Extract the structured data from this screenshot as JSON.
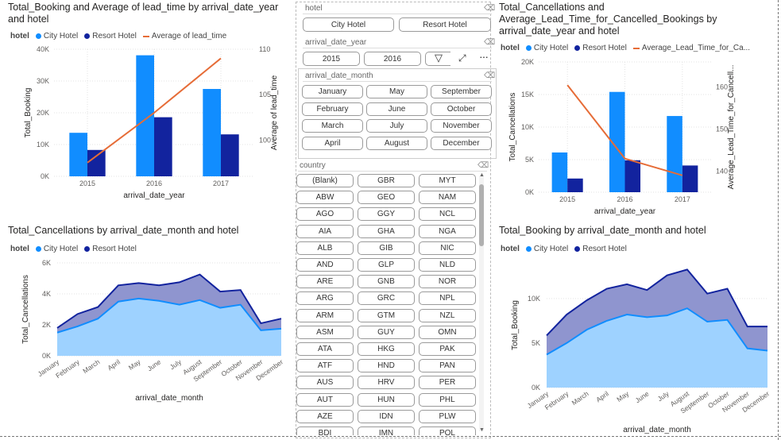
{
  "colors": {
    "city": "#118DFF",
    "resort": "#12239E",
    "line": "#E66C37",
    "grid": "#ddd"
  },
  "chart1": {
    "title": "Total_Booking and Average of lead_time by arrival_date_year\nand hotel",
    "legend_label": "hotel",
    "legend": [
      "City Hotel",
      "Resort Hotel",
      "Average of lead_time"
    ],
    "y_ticks": [
      "40K",
      "30K",
      "20K",
      "10K",
      "0K"
    ],
    "y2_ticks": [
      "110",
      "105",
      "100"
    ],
    "ylabel": "Total_Booking",
    "y2label": "Average of lead_time",
    "xlabel": "arrival_date_year",
    "chart_data": {
      "type": "bar",
      "categories": [
        "2015",
        "2016",
        "2017"
      ],
      "series": [
        {
          "name": "City Hotel",
          "values": [
            13700,
            38100,
            27500
          ]
        },
        {
          "name": "Resort Hotel",
          "values": [
            8300,
            18600,
            13200
          ]
        }
      ],
      "line": {
        "name": "Average of lead_time",
        "values": [
          97.5,
          103,
          109
        ]
      },
      "ylim": [
        0,
        40000
      ],
      "y2lim": [
        96,
        110
      ]
    }
  },
  "chart2": {
    "title": "Total_Cancellations and\nAverage_Lead_Time_for_Cancelled_Bookings by\narrival_date_year and hotel",
    "legend_label": "hotel",
    "legend": [
      "City Hotel",
      "Resort Hotel",
      "Average_Lead_Time_for_Ca..."
    ],
    "y_ticks": [
      "20K",
      "15K",
      "10K",
      "5K",
      "0K"
    ],
    "y2_ticks": [
      "160",
      "150",
      "140"
    ],
    "ylabel": "Total_Cancellations",
    "y2label": "Average_Lead_Time_for_Cancell...",
    "xlabel": "arrival_date_year",
    "chart_data": {
      "type": "bar",
      "categories": [
        "2015",
        "2016",
        "2017"
      ],
      "series": [
        {
          "name": "City Hotel",
          "values": [
            6100,
            15400,
            11700
          ]
        },
        {
          "name": "Resort Hotel",
          "values": [
            2100,
            4900,
            4100
          ]
        }
      ],
      "line": {
        "name": "Average_Lead_Time_for_Ca...",
        "values": [
          160.5,
          143,
          139
        ]
      },
      "ylim": [
        0,
        20000
      ],
      "y2lim": [
        135,
        166
      ]
    }
  },
  "chart3": {
    "title": "Total_Cancellations by arrival_date_month and hotel",
    "legend_label": "hotel",
    "legend": [
      "City Hotel",
      "Resort Hotel"
    ],
    "y_ticks": [
      "6K",
      "4K",
      "2K",
      "0K"
    ],
    "ylabel": "Total_Cancellations",
    "xlabel": "arrival_date_month",
    "chart_data": {
      "type": "area",
      "categories": [
        "January",
        "February",
        "March",
        "April",
        "May",
        "June",
        "July",
        "August",
        "September",
        "October",
        "November",
        "December"
      ],
      "series": [
        {
          "name": "City Hotel",
          "values": [
            1500,
            1900,
            2400,
            3500,
            3700,
            3550,
            3300,
            3600,
            3100,
            3300,
            1650,
            1750
          ]
        },
        {
          "name": "Resort Hotel",
          "values": [
            300,
            800,
            750,
            1050,
            1000,
            1000,
            1450,
            1650,
            1050,
            950,
            450,
            650
          ]
        }
      ],
      "stacked": true,
      "ylim": [
        0,
        6000
      ]
    }
  },
  "chart4": {
    "title": "Total_Booking by arrival_date_month and hotel",
    "legend_label": "hotel",
    "legend": [
      "City Hotel",
      "Resort Hotel"
    ],
    "y_ticks": [
      "10K",
      "5K",
      "0K"
    ],
    "ylabel": "Total_Booking",
    "xlabel": "arrival_date_month",
    "chart_data": {
      "type": "area",
      "categories": [
        "January",
        "February",
        "March",
        "April",
        "May",
        "June",
        "July",
        "August",
        "September",
        "October",
        "November",
        "December"
      ],
      "series": [
        {
          "name": "City Hotel",
          "values": [
            3700,
            5000,
            6500,
            7500,
            8200,
            7900,
            8100,
            8900,
            7400,
            7600,
            4400,
            4150
          ]
        },
        {
          "name": "Resort Hotel",
          "values": [
            2150,
            3200,
            3300,
            3600,
            3400,
            3050,
            4500,
            4350,
            3150,
            3500,
            2450,
            2700
          ]
        }
      ],
      "stacked": true,
      "ylim": [
        0,
        14000
      ]
    }
  },
  "slicers": {
    "hotel": {
      "label": "hotel",
      "options": [
        "City Hotel",
        "Resort Hotel"
      ]
    },
    "year": {
      "label": "arrival_date_year",
      "options": [
        "2015",
        "2016"
      ]
    },
    "month": {
      "label": "arrival_date_month",
      "options": [
        "January",
        "May",
        "September",
        "February",
        "June",
        "October",
        "March",
        "July",
        "November",
        "April",
        "August",
        "December"
      ]
    },
    "country": {
      "label": "country",
      "options": [
        "(Blank)",
        "GBR",
        "MYT",
        "ABW",
        "GEO",
        "NAM",
        "AGO",
        "GGY",
        "NCL",
        "AIA",
        "GHA",
        "NGA",
        "ALB",
        "GIB",
        "NIC",
        "AND",
        "GLP",
        "NLD",
        "ARE",
        "GNB",
        "NOR",
        "ARG",
        "GRC",
        "NPL",
        "ARM",
        "GTM",
        "NZL",
        "ASM",
        "GUY",
        "OMN",
        "ATA",
        "HKG",
        "PAK",
        "ATF",
        "HND",
        "PAN",
        "AUS",
        "HRV",
        "PER",
        "AUT",
        "HUN",
        "PHL",
        "AZE",
        "IDN",
        "PLW",
        "BDI",
        "IMN",
        "POL"
      ]
    }
  }
}
